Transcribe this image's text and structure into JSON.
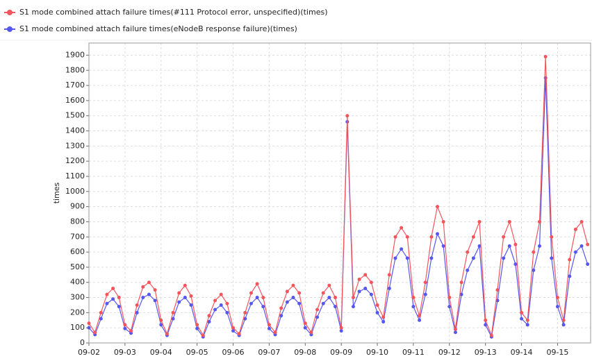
{
  "chart_data": {
    "type": "line",
    "y_label": "times",
    "x": [
      0,
      4,
      8,
      12,
      16,
      20,
      24,
      28,
      32,
      36,
      40,
      44,
      48,
      52,
      56,
      60,
      64,
      68,
      72,
      76,
      80,
      84,
      88,
      92,
      96,
      100,
      104,
      108,
      112,
      116,
      120,
      124,
      128,
      132,
      136,
      140,
      144,
      148,
      152,
      156,
      160,
      164,
      168,
      172,
      176,
      180,
      184,
      188,
      192,
      196,
      200,
      204,
      208,
      212,
      216,
      220,
      224,
      228,
      232,
      236,
      240,
      244,
      248,
      252,
      256,
      260,
      264,
      268,
      272,
      276,
      280,
      284,
      288,
      292,
      296,
      300,
      304,
      308,
      312,
      316,
      320,
      324,
      328,
      332
    ],
    "xlim": [
      0,
      334
    ],
    "xticks": [
      {
        "value": 0,
        "label": "09-02"
      },
      {
        "value": 24,
        "label": "09-03"
      },
      {
        "value": 48,
        "label": "09-04"
      },
      {
        "value": 72,
        "label": "09-05"
      },
      {
        "value": 96,
        "label": "09-06"
      },
      {
        "value": 120,
        "label": "09-07"
      },
      {
        "value": 144,
        "label": "09-08"
      },
      {
        "value": 168,
        "label": "09-09"
      },
      {
        "value": 192,
        "label": "09-10"
      },
      {
        "value": 216,
        "label": "09-11"
      },
      {
        "value": 240,
        "label": "09-12"
      },
      {
        "value": 264,
        "label": "09-13"
      },
      {
        "value": 288,
        "label": "09-14"
      },
      {
        "value": 312,
        "label": "09-15"
      }
    ],
    "ylim": [
      0,
      1980
    ],
    "yticks": [
      0,
      100,
      200,
      300,
      400,
      500,
      600,
      700,
      800,
      900,
      1000,
      1100,
      1200,
      1300,
      1400,
      1500,
      1600,
      1700,
      1800,
      1900
    ],
    "grid": true,
    "series": [
      {
        "name": "S1 mode combined attach failure times(#111 Protocol error, unspecified)(times)",
        "color": "#f4545c",
        "values": [
          130,
          70,
          200,
          320,
          360,
          300,
          120,
          80,
          250,
          370,
          400,
          350,
          150,
          60,
          200,
          330,
          380,
          310,
          120,
          50,
          180,
          280,
          320,
          260,
          100,
          60,
          200,
          330,
          390,
          300,
          120,
          70,
          230,
          340,
          380,
          330,
          130,
          70,
          220,
          330,
          380,
          300,
          100,
          1500,
          300,
          420,
          450,
          400,
          250,
          170,
          450,
          700,
          760,
          700,
          300,
          180,
          400,
          700,
          900,
          800,
          300,
          90,
          400,
          600,
          700,
          800,
          150,
          50,
          350,
          700,
          800,
          650,
          200,
          150,
          600,
          800,
          1890,
          700,
          300,
          150,
          550,
          750,
          800,
          650
        ]
      },
      {
        "name": "S1 mode combined attach failure times(eNodeB response failure)(times)",
        "color": "#5656f0",
        "values": [
          100,
          55,
          160,
          260,
          290,
          240,
          95,
          65,
          200,
          300,
          320,
          280,
          120,
          50,
          160,
          270,
          300,
          250,
          95,
          40,
          140,
          220,
          250,
          200,
          80,
          50,
          160,
          260,
          300,
          240,
          95,
          55,
          180,
          270,
          300,
          260,
          100,
          55,
          170,
          260,
          300,
          240,
          80,
          1460,
          240,
          340,
          360,
          320,
          200,
          140,
          360,
          560,
          620,
          560,
          240,
          150,
          320,
          560,
          720,
          640,
          240,
          70,
          320,
          480,
          560,
          640,
          120,
          40,
          280,
          560,
          640,
          520,
          160,
          120,
          480,
          640,
          1750,
          560,
          240,
          120,
          440,
          600,
          640,
          520
        ]
      }
    ]
  }
}
